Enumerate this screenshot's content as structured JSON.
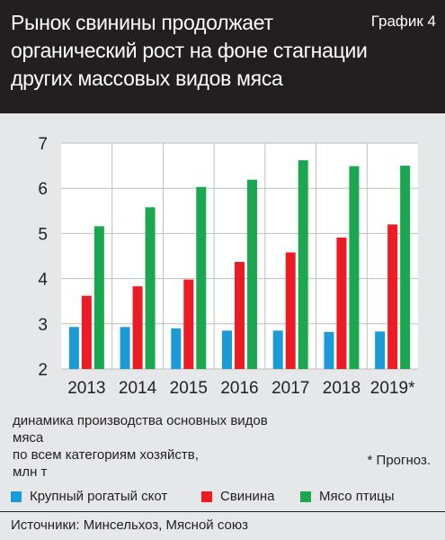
{
  "header": {
    "title": "Рынок свинины продолжает\nорганический рост на фоне стагнации\nдругих массовых видов мяса",
    "chart_number": "График 4"
  },
  "caption": "динамика производства основных видов мяса\nпо всем категориям хозяйств,\nмлн т",
  "footnote": "* Прогноз.",
  "source": "Источники: Минсельхоз, Мясной союз",
  "chart_data": {
    "type": "bar",
    "categories": [
      "2013",
      "2014",
      "2015",
      "2016",
      "2017",
      "2018",
      "2019*"
    ],
    "series": [
      {
        "name": "Крупный рогатый скот",
        "color": "#1a9bd7",
        "values": [
          2.93,
          2.93,
          2.9,
          2.85,
          2.85,
          2.82,
          2.83
        ]
      },
      {
        "name": "Свинина",
        "color": "#ed1c24",
        "values": [
          3.62,
          3.83,
          3.98,
          4.37,
          4.58,
          4.91,
          5.2
        ]
      },
      {
        "name": "Мясо птицы",
        "color": "#1aa74f",
        "values": [
          5.16,
          5.58,
          6.03,
          6.19,
          6.62,
          6.49,
          6.5
        ]
      }
    ],
    "ylim": [
      2,
      7
    ],
    "yticks": [
      "2",
      "3",
      "4",
      "5",
      "6",
      "7"
    ],
    "grid": true,
    "legend_position": "bottom"
  }
}
